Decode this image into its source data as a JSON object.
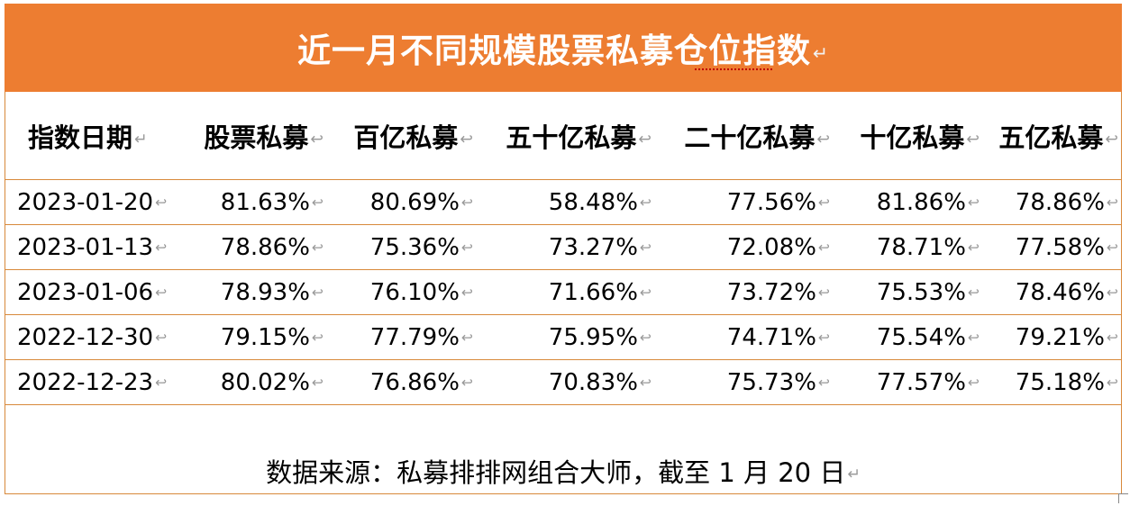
{
  "title": "近一月不同规模股票私募仓位指数",
  "paragraph_mark": "↵",
  "cell_mark": "↩",
  "headers": [
    "指数日期",
    "股票私募",
    "百亿私募",
    "五十亿私募",
    "二十亿私募",
    "十亿私募",
    "五亿私募"
  ],
  "rows": [
    [
      "2023-01-20",
      "81.63%",
      "80.69%",
      "58.48%",
      "77.56%",
      "81.86%",
      "78.86%"
    ],
    [
      "2023-01-13",
      "78.86%",
      "75.36%",
      "73.27%",
      "72.08%",
      "78.71%",
      "77.58%"
    ],
    [
      "2023-01-06",
      "78.93%",
      "76.10%",
      "71.66%",
      "73.72%",
      "75.53%",
      "78.46%"
    ],
    [
      "2022-12-30",
      "79.15%",
      "77.79%",
      "75.95%",
      "74.71%",
      "75.54%",
      "79.21%"
    ],
    [
      "2022-12-23",
      "80.02%",
      "76.86%",
      "70.83%",
      "75.73%",
      "77.57%",
      "75.18%"
    ]
  ],
  "source": "数据来源：私募排排网组合大师，截至 1 月 20 日",
  "colors": {
    "header_band": "#ed7d31",
    "border": "#d8893b",
    "title_text": "#ffffff"
  }
}
